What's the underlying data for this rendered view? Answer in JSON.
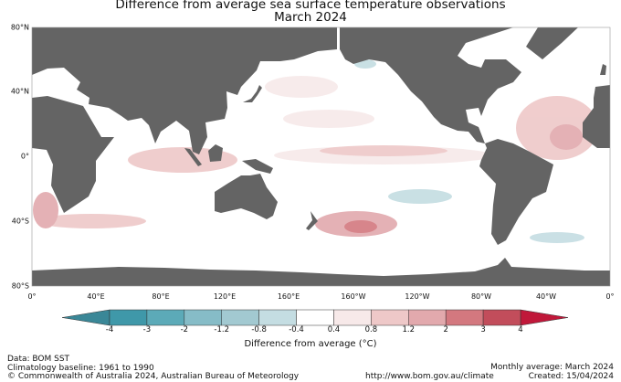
{
  "title": [
    "Difference from average sea surface temperature observations",
    "March 2024"
  ],
  "lat_labels": [
    "80°N",
    "40°N",
    "0°",
    "40°S",
    "80°S"
  ],
  "lon_labels": [
    "0°",
    "40°E",
    "80°E",
    "120°E",
    "160°E",
    "160°W",
    "120°W",
    "80°W",
    "40°W",
    "0°"
  ],
  "colorbar": {
    "ticks": [
      "-4",
      "-3",
      "-2",
      "-1.2",
      "-0.8",
      "-0.4",
      "0.4",
      "0.8",
      "1.2",
      "2",
      "3",
      "4"
    ],
    "colors": [
      "#3f98a9",
      "#5caab8",
      "#86bcc7",
      "#a2c9d1",
      "#c4dde2",
      "#ffffff",
      "#f7e9e9",
      "#eec8c8",
      "#e2a9ad",
      "#d3787f",
      "#c24d5b"
    ],
    "under_color": "#3a8797",
    "over_color": "#c0183a",
    "label": "Difference from average (°C)"
  },
  "land_color": "#646464",
  "footer": {
    "data": "Data: BOM SST",
    "baseline": "Climatology baseline: 1961 to 1990",
    "copyright": "© Commonwealth of Australia 2024, Australian Bureau of Meteorology",
    "url": "http://www.bom.gov.au/climate",
    "monthly": "Monthly average: March 2024",
    "created": "Created: 15/04/2024"
  }
}
